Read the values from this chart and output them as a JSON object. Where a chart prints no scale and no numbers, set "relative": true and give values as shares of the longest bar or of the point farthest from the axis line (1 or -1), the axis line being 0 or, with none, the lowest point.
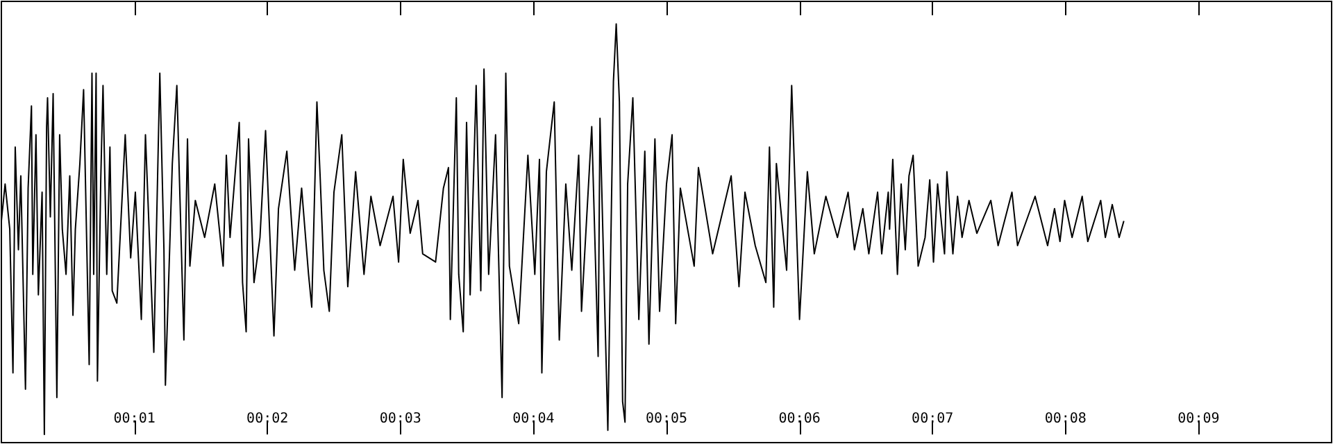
{
  "chart_data": {
    "type": "line",
    "relative": true,
    "xlim": [
      0,
      10
    ],
    "xticks": [
      {
        "value": 1,
        "label": "00:01"
      },
      {
        "value": 2,
        "label": "00:02"
      },
      {
        "value": 3,
        "label": "00:03"
      },
      {
        "value": 4,
        "label": "00:04"
      },
      {
        "value": 5,
        "label": "00:05"
      },
      {
        "value": 6,
        "label": "00:06"
      },
      {
        "value": 7,
        "label": "00:07"
      },
      {
        "value": 8,
        "label": "00:08"
      },
      {
        "value": 9,
        "label": "00:09"
      }
    ],
    "x": [
      0,
      0.028,
      0.063,
      0.087,
      0.104,
      0.128,
      0.146,
      0.181,
      0.201,
      0.226,
      0.236,
      0.26,
      0.278,
      0.306,
      0.323,
      0.34,
      0.347,
      0.368,
      0.389,
      0.417,
      0.438,
      0.458,
      0.486,
      0.514,
      0.538,
      0.556,
      0.59,
      0.618,
      0.66,
      0.681,
      0.694,
      0.712,
      0.722,
      0.747,
      0.764,
      0.792,
      0.816,
      0.833,
      0.868,
      0.931,
      0.972,
      1.007,
      1.052,
      1.083,
      1.146,
      1.191,
      1.222,
      1.233,
      1.285,
      1.319,
      1.372,
      1.399,
      1.417,
      1.458,
      1.528,
      1.604,
      1.667,
      1.691,
      1.719,
      1.788,
      1.813,
      1.84,
      1.858,
      1.899,
      1.944,
      1.986,
      2.049,
      2.083,
      2.146,
      2.205,
      2.257,
      2.309,
      2.333,
      2.372,
      2.396,
      2.424,
      2.465,
      2.5,
      2.559,
      2.604,
      2.663,
      2.726,
      2.778,
      2.847,
      2.944,
      2.986,
      3.021,
      3.073,
      3.132,
      3.167,
      3.264,
      3.323,
      3.361,
      3.375,
      3.42,
      3.438,
      3.472,
      3.497,
      3.524,
      3.569,
      3.604,
      3.628,
      3.663,
      3.715,
      3.764,
      3.792,
      3.819,
      3.889,
      3.958,
      4.01,
      4.045,
      4.063,
      4.097,
      4.156,
      4.194,
      4.243,
      4.288,
      4.34,
      4.361,
      4.438,
      4.486,
      4.5,
      4.535,
      4.559,
      4.601,
      4.622,
      4.646,
      4.67,
      4.688,
      4.708,
      4.747,
      4.792,
      4.837,
      4.868,
      4.913,
      4.948,
      5,
      5.042,
      5.069,
      5.104,
      5.208,
      5.24,
      5.347,
      5.486,
      5.545,
      5.59,
      5.667,
      5.747,
      5.774,
      5.806,
      5.826,
      5.903,
      5.941,
      6,
      6.059,
      6.111,
      6.198,
      6.285,
      6.365,
      6.413,
      6.476,
      6.521,
      6.587,
      6.618,
      6.667,
      6.677,
      6.701,
      6.736,
      6.764,
      6.795,
      6.823,
      6.854,
      6.892,
      6.944,
      6.979,
      7.007,
      7.038,
      7.09,
      7.108,
      7.153,
      7.188,
      7.222,
      7.274,
      7.333,
      7.438,
      7.493,
      7.597,
      7.639,
      7.771,
      7.865,
      7.917,
      7.958,
      7.993,
      8.049,
      8.125,
      8.167,
      8.264,
      8.299,
      8.351,
      8.403,
      8.438
    ],
    "series": [
      {
        "color": "#000000",
        "values": [
          0.52,
          0.61,
          0.5,
          0.15,
          0.7,
          0.45,
          0.63,
          0.11,
          0.6,
          0.8,
          0.39,
          0.73,
          0.34,
          0.59,
          0,
          0.75,
          0.82,
          0.53,
          0.83,
          0.09,
          0.73,
          0.5,
          0.39,
          0.63,
          0.29,
          0.5,
          0.66,
          0.84,
          0.17,
          0.88,
          0.39,
          0.88,
          0.13,
          0.62,
          0.85,
          0.39,
          0.7,
          0.35,
          0.32,
          0.73,
          0.43,
          0.59,
          0.28,
          0.73,
          0.2,
          0.88,
          0.45,
          0.12,
          0.66,
          0.85,
          0.23,
          0.72,
          0.41,
          0.57,
          0.48,
          0.61,
          0.41,
          0.68,
          0.48,
          0.76,
          0.37,
          0.25,
          0.72,
          0.37,
          0.48,
          0.74,
          0.24,
          0.55,
          0.69,
          0.4,
          0.6,
          0.39,
          0.31,
          0.81,
          0.63,
          0.4,
          0.3,
          0.59,
          0.73,
          0.36,
          0.64,
          0.39,
          0.58,
          0.46,
          0.58,
          0.42,
          0.67,
          0.49,
          0.57,
          0.44,
          0.42,
          0.6,
          0.65,
          0.28,
          0.82,
          0.39,
          0.25,
          0.76,
          0.34,
          0.85,
          0.35,
          0.89,
          0.39,
          0.73,
          0.09,
          0.88,
          0.41,
          0.27,
          0.68,
          0.39,
          0.67,
          0.15,
          0.64,
          0.81,
          0.23,
          0.61,
          0.4,
          0.68,
          0.3,
          0.75,
          0.19,
          0.77,
          0.32,
          0.01,
          0.86,
          1,
          0.81,
          0.08,
          0.03,
          0.61,
          0.82,
          0.28,
          0.69,
          0.22,
          0.72,
          0.3,
          0.61,
          0.73,
          0.27,
          0.6,
          0.41,
          0.65,
          0.44,
          0.63,
          0.36,
          0.59,
          0.46,
          0.37,
          0.7,
          0.31,
          0.66,
          0.4,
          0.85,
          0.28,
          0.64,
          0.44,
          0.58,
          0.48,
          0.59,
          0.45,
          0.55,
          0.44,
          0.59,
          0.44,
          0.59,
          0.5,
          0.67,
          0.39,
          0.61,
          0.45,
          0.63,
          0.68,
          0.41,
          0.48,
          0.62,
          0.42,
          0.61,
          0.44,
          0.64,
          0.44,
          0.58,
          0.48,
          0.57,
          0.49,
          0.57,
          0.46,
          0.59,
          0.46,
          0.58,
          0.46,
          0.55,
          0.47,
          0.57,
          0.48,
          0.58,
          0.47,
          0.57,
          0.48,
          0.56,
          0.48,
          0.52
        ]
      }
    ]
  }
}
